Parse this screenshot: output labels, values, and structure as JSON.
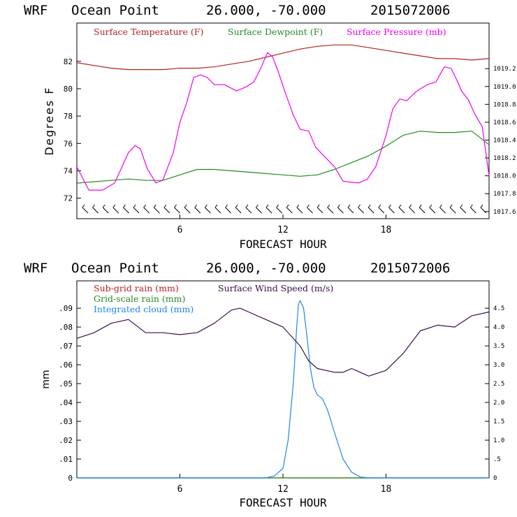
{
  "chart_data": [
    {
      "type": "line",
      "title": {
        "model": "WRF",
        "location": "Ocean Point",
        "coords": "26.000, -70.000",
        "run": "2015072006"
      },
      "xlabel": "FORECAST HOUR",
      "ylabel": "Degrees F",
      "xlim": [
        0,
        24
      ],
      "x_ticks": [
        6,
        12,
        18
      ],
      "ylim": [
        70.5,
        84.8
      ],
      "y_ticks": [
        72,
        74,
        76,
        78,
        80,
        82
      ],
      "y2lim": [
        1017.52,
        1019.71
      ],
      "y2_ticks": [
        "1017.6",
        "1017.8",
        "1018.0",
        "1018.2",
        "1018.4",
        "1018.6",
        "1018.8",
        "1019.0",
        "1019.2"
      ],
      "wind_barbs": 40,
      "series": [
        {
          "name": "Surface Temperature (F)",
          "color": "#b22222",
          "axis": "left",
          "x": [
            0,
            1,
            2,
            3,
            4,
            5,
            6,
            7,
            8,
            9,
            10,
            11,
            12,
            13,
            14,
            15,
            16,
            17,
            18,
            19,
            20,
            21,
            22,
            23,
            24
          ],
          "values": [
            81.9,
            81.7,
            81.5,
            81.4,
            81.4,
            81.4,
            81.5,
            81.5,
            81.6,
            81.8,
            82.0,
            82.3,
            82.6,
            82.9,
            83.1,
            83.2,
            83.2,
            83.0,
            82.8,
            82.6,
            82.4,
            82.2,
            82.2,
            82.1,
            82.2
          ]
        },
        {
          "name": "Surface Dewpoint (F)",
          "color": "#228b22",
          "axis": "left",
          "x": [
            0,
            1,
            2,
            3,
            4,
            5,
            6,
            7,
            8,
            9,
            10,
            11,
            12,
            13,
            14,
            15,
            16,
            17,
            18,
            19,
            20,
            21,
            22,
            23,
            24
          ],
          "values": [
            73.1,
            73.2,
            73.3,
            73.4,
            73.3,
            73.3,
            73.7,
            74.1,
            74.1,
            74.0,
            73.9,
            73.8,
            73.7,
            73.6,
            73.7,
            74.1,
            74.6,
            75.1,
            75.8,
            76.6,
            76.9,
            76.8,
            76.8,
            76.9,
            75.9
          ]
        },
        {
          "name": "Surface Pressure (mb)",
          "color": "#ee00ee",
          "axis": "right",
          "x": [
            0,
            0.7,
            1.5,
            2.2,
            3,
            3.4,
            3.7,
            4.1,
            4.6,
            5,
            5.6,
            6,
            6.4,
            6.8,
            7.2,
            7.6,
            8,
            8.6,
            9.3,
            9.9,
            10.3,
            10.7,
            11.1,
            11.4,
            11.7,
            12.1,
            12.6,
            13,
            13.5,
            13.9,
            14.5,
            15,
            15.5,
            15.9,
            16.4,
            16.9,
            17.4,
            18,
            18.4,
            18.8,
            19.2,
            19.8,
            20.4,
            20.9,
            21.4,
            21.8,
            22.1,
            22.4,
            22.8,
            23.2,
            23.6,
            24
          ],
          "values": [
            1018.1,
            1017.84,
            1017.84,
            1017.92,
            1018.26,
            1018.34,
            1018.3,
            1018.08,
            1017.92,
            1017.95,
            1018.25,
            1018.6,
            1018.82,
            1019.1,
            1019.13,
            1019.1,
            1019.02,
            1019.02,
            1018.95,
            1019.0,
            1019.05,
            1019.2,
            1019.38,
            1019.33,
            1019.18,
            1018.95,
            1018.68,
            1018.52,
            1018.5,
            1018.32,
            1018.2,
            1018.1,
            1017.94,
            1017.93,
            1017.92,
            1017.96,
            1018.1,
            1018.45,
            1018.75,
            1018.86,
            1018.84,
            1018.95,
            1019.02,
            1019.05,
            1019.22,
            1019.2,
            1019.08,
            1018.95,
            1018.85,
            1018.68,
            1018.55,
            1018.0
          ]
        }
      ]
    },
    {
      "type": "line",
      "title": {
        "model": "WRF",
        "location": "Ocean Point",
        "coords": "26.000, -70.000",
        "run": "2015072006"
      },
      "xlabel": "FORECAST HOUR",
      "ylabel": "mm",
      "xlim": [
        0,
        24
      ],
      "x_ticks": [
        6,
        12,
        18
      ],
      "ylim": [
        0,
        0.1045
      ],
      "y_ticks": [
        "0",
        ".01",
        ".02",
        ".03",
        ".04",
        ".05",
        ".06",
        ".07",
        ".08",
        ".09"
      ],
      "y2lim": [
        0,
        5.225
      ],
      "y2_ticks": [
        "0",
        ".5",
        "1.0",
        "1.5",
        "2.0",
        "2.5",
        "3.0",
        "3.5",
        "4.0",
        "4.5"
      ],
      "series": [
        {
          "name": "Sub-grid rain (mm)",
          "color": "#b22222",
          "axis": "left",
          "x": [
            0,
            24
          ],
          "values": [
            0,
            0
          ]
        },
        {
          "name": "Grid-scale rain (mm)",
          "color": "#228b22",
          "axis": "left",
          "x": [
            0,
            24
          ],
          "values": [
            0,
            0
          ]
        },
        {
          "name": "Integrated cloud (mm)",
          "color": "#1c86ee",
          "axis": "left",
          "x": [
            0,
            11,
            11.5,
            12,
            12.3,
            12.6,
            12.8,
            12.9,
            13.0,
            13.2,
            13.4,
            13.6,
            13.8,
            14.0,
            14.3,
            14.6,
            15,
            15.5,
            16,
            16.5,
            17,
            24
          ],
          "values": [
            0,
            0,
            0.001,
            0.005,
            0.02,
            0.05,
            0.08,
            0.092,
            0.094,
            0.09,
            0.075,
            0.058,
            0.048,
            0.044,
            0.042,
            0.036,
            0.024,
            0.01,
            0.003,
            0.0005,
            0,
            0
          ]
        },
        {
          "name": "Surface Wind Speed (m/s)",
          "color": "#3b0f4a",
          "axis": "right",
          "x": [
            0,
            1,
            2,
            3,
            4,
            5,
            6,
            7,
            8,
            9,
            9.5,
            10,
            11,
            12,
            13,
            13.5,
            14,
            15,
            15.5,
            16,
            17,
            18,
            19,
            20,
            21,
            22,
            23,
            24
          ],
          "values": [
            3.7,
            3.85,
            4.1,
            4.2,
            3.85,
            3.85,
            3.8,
            3.85,
            4.1,
            4.45,
            4.5,
            4.4,
            4.2,
            4.0,
            3.5,
            3.1,
            2.9,
            2.8,
            2.8,
            2.9,
            2.7,
            2.85,
            3.3,
            3.9,
            4.05,
            4.0,
            4.3,
            4.4
          ]
        }
      ]
    }
  ]
}
